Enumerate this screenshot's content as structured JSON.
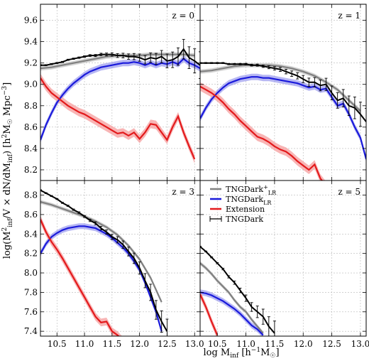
{
  "chart_data": {
    "type": "line",
    "xlabel": "log M$_{\\rm inf}$ [h$^{-1}$M$_\\odot$]",
    "ylabel": "log(M$^2_{\\rm inf}$/V × dN/dM$_{\\rm inf}$) [h$^2$M$_\\odot$ Mpc$^{-3}$]",
    "xlabel_parts": {
      "main": "log M",
      "sub": "inf",
      "unit_pre": " [h",
      "unit_sup": "−1",
      "unit_mid": "M",
      "unit_sub": "☉",
      "unit_post": "]"
    },
    "ylabel_parts": {
      "pre": "log(M",
      "sup1": "2",
      "sub1": "inf",
      "mid": "/V × dN/dM",
      "sub2": "inf",
      "post": ")"
    },
    "ylabel_unit_parts": {
      "pre": "[h",
      "sup1": "2",
      "mid": "M",
      "sub1": "☉",
      "mid2": " Mpc",
      "sup2": "−3",
      "post": "]"
    },
    "xlim": [
      10.2,
      13.1
    ],
    "x_ticks": [
      "10.5",
      "11.0",
      "11.5",
      "12.0",
      "12.5",
      "13.0"
    ],
    "x_tick_values": [
      10.5,
      11.0,
      11.5,
      12.0,
      12.5,
      13.0
    ],
    "grid": true,
    "legend_position": "top-left of lower-right panel",
    "colors": {
      "tngdark_lr_plus": "#808080",
      "tngdark_lr": "#1a1adb",
      "extension": "#e31a1c",
      "tngdark": "#000000",
      "lr_band": "#9999ee",
      "ext_band": "#f6a3a3",
      "plus_band": "#c8c8c8"
    },
    "legend": [
      {
        "key": "tngdark_lr_plus",
        "label_main": "TNGDark",
        "label_sup": "+",
        "label_sub": "LR"
      },
      {
        "key": "tngdark_lr",
        "label_main": "TNGDark",
        "label_sup": "",
        "label_sub": "LR"
      },
      {
        "key": "extension",
        "label_main": "Extension",
        "label_sup": "",
        "label_sub": ""
      },
      {
        "key": "tngdark",
        "label_main": "TNGDark",
        "label_sup": "",
        "label_sub": ""
      }
    ],
    "panels": [
      {
        "label": "z = 0",
        "ylim": [
          8.1,
          9.75
        ],
        "y_ticks": [
          "8.2",
          "8.4",
          "8.6",
          "8.8",
          "9.0",
          "9.2",
          "9.4",
          "9.6"
        ],
        "y_tick_values": [
          8.2,
          8.4,
          8.6,
          8.8,
          9.0,
          9.2,
          9.4,
          9.6
        ],
        "show_y_labels": true,
        "show_x_labels": false,
        "series": {
          "tngdark": {
            "x": [
              10.2,
              10.3,
              10.4,
              10.5,
              10.6,
              10.7,
              10.8,
              10.9,
              11.0,
              11.1,
              11.2,
              11.3,
              11.4,
              11.5,
              11.6,
              11.7,
              11.8,
              11.9,
              12.0,
              12.1,
              12.2,
              12.3,
              12.4,
              12.5,
              12.6,
              12.7,
              12.8,
              12.9,
              13.0,
              13.1
            ],
            "y": [
              9.18,
              9.18,
              9.19,
              9.2,
              9.21,
              9.23,
              9.24,
              9.25,
              9.26,
              9.27,
              9.27,
              9.28,
              9.28,
              9.28,
              9.27,
              9.27,
              9.26,
              9.26,
              9.25,
              9.23,
              9.25,
              9.24,
              9.26,
              9.22,
              9.23,
              9.26,
              9.33,
              9.25,
              9.22,
              9.18
            ]
          },
          "tngdark_lr_plus": {
            "x": [
              10.2,
              10.4,
              10.6,
              10.8,
              11.0,
              11.2,
              11.4,
              11.6,
              11.8,
              12.0,
              12.2,
              12.4,
              12.6,
              12.8,
              13.0
            ],
            "y": [
              9.15,
              9.16,
              9.18,
              9.2,
              9.22,
              9.24,
              9.26,
              9.27,
              9.27,
              9.27,
              9.28,
              9.28,
              9.28,
              9.28,
              9.27
            ]
          },
          "tngdark_lr": {
            "x": [
              10.2,
              10.3,
              10.4,
              10.5,
              10.6,
              10.7,
              10.8,
              10.9,
              11.0,
              11.1,
              11.2,
              11.3,
              11.4,
              11.5,
              11.6,
              11.7,
              11.8,
              11.9,
              12.0,
              12.1,
              12.2,
              12.3,
              12.4,
              12.5,
              12.6,
              12.7,
              12.8,
              12.9,
              13.0,
              13.1
            ],
            "y": [
              8.48,
              8.62,
              8.73,
              8.83,
              8.9,
              8.96,
              9.01,
              9.05,
              9.09,
              9.12,
              9.14,
              9.16,
              9.17,
              9.18,
              9.19,
              9.2,
              9.2,
              9.21,
              9.2,
              9.18,
              9.2,
              9.18,
              9.2,
              9.19,
              9.21,
              9.19,
              9.24,
              9.2,
              9.18,
              9.15
            ]
          },
          "extension": {
            "x": [
              10.2,
              10.3,
              10.4,
              10.5,
              10.6,
              10.7,
              10.8,
              10.9,
              11.0,
              11.1,
              11.2,
              11.3,
              11.4,
              11.5,
              11.6,
              11.7,
              11.8,
              11.9,
              12.0,
              12.1,
              12.2,
              12.3,
              12.4,
              12.5,
              12.6,
              12.7,
              12.8,
              12.9,
              13.0
            ],
            "y": [
              9.06,
              8.98,
              8.92,
              8.88,
              8.84,
              8.8,
              8.77,
              8.74,
              8.72,
              8.69,
              8.66,
              8.63,
              8.6,
              8.57,
              8.54,
              8.55,
              8.52,
              8.55,
              8.49,
              8.55,
              8.63,
              8.62,
              8.55,
              8.48,
              8.6,
              8.7,
              8.55,
              8.42,
              8.3
            ]
          }
        }
      },
      {
        "label": "z = 1",
        "ylim": [
          8.1,
          9.75
        ],
        "y_ticks": [],
        "y_tick_values": [
          8.2,
          8.4,
          8.6,
          8.8,
          9.0,
          9.2,
          9.4,
          9.6
        ],
        "show_y_labels": false,
        "show_x_labels": false,
        "series": {
          "tngdark": {
            "x": [
              10.2,
              10.3,
              10.4,
              10.5,
              10.6,
              10.7,
              10.8,
              10.9,
              11.0,
              11.1,
              11.2,
              11.3,
              11.4,
              11.5,
              11.6,
              11.7,
              11.8,
              11.9,
              12.0,
              12.1,
              12.2,
              12.3,
              12.4,
              12.5,
              12.6,
              12.7,
              12.8,
              12.9,
              13.0,
              13.1
            ],
            "y": [
              9.2,
              9.2,
              9.2,
              9.2,
              9.2,
              9.19,
              9.19,
              9.19,
              9.19,
              9.18,
              9.18,
              9.17,
              9.16,
              9.15,
              9.14,
              9.12,
              9.1,
              9.08,
              9.05,
              9.02,
              9.02,
              8.99,
              9.0,
              8.92,
              8.85,
              8.87,
              8.8,
              8.78,
              8.72,
              8.65
            ]
          },
          "tngdark_lr_plus": {
            "x": [
              10.2,
              10.4,
              10.6,
              10.8,
              11.0,
              11.2,
              11.4,
              11.6,
              11.8,
              12.0,
              12.2,
              12.4,
              12.6,
              12.8,
              13.0
            ],
            "y": [
              9.12,
              9.13,
              9.15,
              9.17,
              9.18,
              9.18,
              9.18,
              9.17,
              9.15,
              9.12,
              9.08,
              9.02,
              8.95,
              8.85,
              8.75
            ]
          },
          "tngdark_lr": {
            "x": [
              10.2,
              10.3,
              10.4,
              10.5,
              10.6,
              10.7,
              10.8,
              10.9,
              11.0,
              11.1,
              11.2,
              11.3,
              11.4,
              11.5,
              11.6,
              11.7,
              11.8,
              11.9,
              12.0,
              12.1,
              12.2,
              12.3,
              12.4,
              12.5,
              12.6,
              12.7,
              12.8,
              12.9,
              13.0,
              13.1
            ],
            "y": [
              8.68,
              8.78,
              8.86,
              8.92,
              8.97,
              9.01,
              9.03,
              9.05,
              9.06,
              9.07,
              9.07,
              9.06,
              9.06,
              9.05,
              9.04,
              9.03,
              9.02,
              9.01,
              8.99,
              8.97,
              8.98,
              8.95,
              8.96,
              8.88,
              8.8,
              8.82,
              8.72,
              8.6,
              8.5,
              8.3
            ]
          },
          "extension": {
            "x": [
              10.2,
              10.3,
              10.4,
              10.5,
              10.6,
              10.7,
              10.8,
              10.9,
              11.0,
              11.1,
              11.2,
              11.3,
              11.4,
              11.5,
              11.6,
              11.7,
              11.8,
              11.9,
              12.0,
              12.1,
              12.2,
              12.3,
              12.4,
              12.5,
              12.6,
              12.7,
              12.8,
              12.9,
              13.0
            ],
            "y": [
              8.98,
              8.95,
              8.92,
              8.88,
              8.83,
              8.77,
              8.72,
              8.66,
              8.61,
              8.56,
              8.51,
              8.49,
              8.46,
              8.42,
              8.39,
              8.37,
              8.33,
              8.28,
              8.24,
              8.2,
              8.25,
              8.12,
              8.05,
              8.0,
              8.0,
              8.0,
              8.0,
              8.0,
              8.0
            ]
          }
        }
      },
      {
        "label": "z = 3",
        "ylim": [
          7.35,
          8.95
        ],
        "y_ticks": [
          "7.4",
          "7.6",
          "7.8",
          "8.0",
          "8.2",
          "8.4",
          "8.6",
          "8.8"
        ],
        "y_tick_values": [
          7.4,
          7.6,
          7.8,
          8.0,
          8.2,
          8.4,
          8.6,
          8.8
        ],
        "show_y_labels": true,
        "show_x_labels": true,
        "series": {
          "tngdark": {
            "x": [
              10.2,
              10.3,
              10.4,
              10.5,
              10.6,
              10.7,
              10.8,
              10.9,
              11.0,
              11.1,
              11.2,
              11.3,
              11.4,
              11.5,
              11.6,
              11.7,
              11.8,
              11.9,
              12.0,
              12.1,
              12.2,
              12.3,
              12.4,
              12.5
            ],
            "y": [
              8.85,
              8.82,
              8.79,
              8.76,
              8.72,
              8.69,
              8.65,
              8.62,
              8.58,
              8.54,
              8.51,
              8.46,
              8.42,
              8.37,
              8.34,
              8.29,
              8.22,
              8.15,
              8.05,
              7.92,
              7.8,
              7.62,
              7.5,
              7.4
            ]
          },
          "tngdark_lr_plus": {
            "x": [
              10.2,
              10.4,
              10.6,
              10.8,
              11.0,
              11.2,
              11.4,
              11.6,
              11.8,
              12.0,
              12.2,
              12.4
            ],
            "y": [
              8.73,
              8.7,
              8.66,
              8.62,
              8.58,
              8.53,
              8.47,
              8.39,
              8.28,
              8.14,
              7.95,
              7.7
            ]
          },
          "tngdark_lr": {
            "x": [
              10.2,
              10.3,
              10.4,
              10.5,
              10.6,
              10.7,
              10.8,
              10.9,
              11.0,
              11.1,
              11.2,
              11.3,
              11.4,
              11.5,
              11.6,
              11.7,
              11.8,
              11.9,
              12.0,
              12.1,
              12.2,
              12.3,
              12.4
            ],
            "y": [
              8.2,
              8.3,
              8.37,
              8.41,
              8.44,
              8.46,
              8.47,
              8.48,
              8.48,
              8.47,
              8.46,
              8.43,
              8.4,
              8.36,
              8.31,
              8.26,
              8.2,
              8.12,
              8.03,
              7.9,
              7.75,
              7.6,
              7.4
            ]
          },
          "extension": {
            "x": [
              10.2,
              10.3,
              10.4,
              10.5,
              10.6,
              10.7,
              10.8,
              10.9,
              11.0,
              11.1,
              11.2,
              11.3,
              11.4,
              11.5,
              11.6,
              11.7
            ],
            "y": [
              8.55,
              8.42,
              8.32,
              8.24,
              8.15,
              8.05,
              7.95,
              7.85,
              7.75,
              7.65,
              7.55,
              7.49,
              7.5,
              7.4,
              7.36,
              7.3
            ]
          }
        }
      },
      {
        "label": "z = 5",
        "ylim": [
          7.35,
          8.95
        ],
        "y_ticks": [],
        "y_tick_values": [
          7.4,
          7.6,
          7.8,
          8.0,
          8.2,
          8.4,
          8.6,
          8.8
        ],
        "show_y_labels": false,
        "show_x_labels": true,
        "series": {
          "tngdark": {
            "x": [
              10.2,
              10.3,
              10.4,
              10.5,
              10.6,
              10.7,
              10.8,
              10.9,
              11.0,
              11.1,
              11.2,
              11.3,
              11.4,
              11.5
            ],
            "y": [
              8.27,
              8.22,
              8.16,
              8.1,
              8.04,
              7.96,
              7.9,
              7.82,
              7.74,
              7.65,
              7.6,
              7.55,
              7.45,
              7.38
            ]
          },
          "tngdark_lr_plus": {
            "x": [
              10.2,
              10.3,
              10.4,
              10.5,
              10.6,
              10.7,
              10.8,
              10.9,
              11.0,
              11.1,
              11.2,
              11.3
            ],
            "y": [
              8.1,
              8.05,
              7.99,
              7.92,
              7.86,
              7.8,
              7.72,
              7.65,
              7.6,
              7.52,
              7.45,
              7.38
            ]
          },
          "tngdark_lr": {
            "x": [
              10.2,
              10.3,
              10.4,
              10.5,
              10.6,
              10.7,
              10.8,
              10.9,
              11.0,
              11.1,
              11.2,
              11.3
            ],
            "y": [
              7.8,
              7.79,
              7.77,
              7.74,
              7.71,
              7.67,
              7.63,
              7.58,
              7.52,
              7.46,
              7.42,
              7.36
            ]
          },
          "extension": {
            "x": [
              10.2,
              10.3,
              10.4,
              10.5
            ],
            "y": [
              7.78,
              7.65,
              7.5,
              7.36
            ]
          }
        }
      }
    ]
  }
}
